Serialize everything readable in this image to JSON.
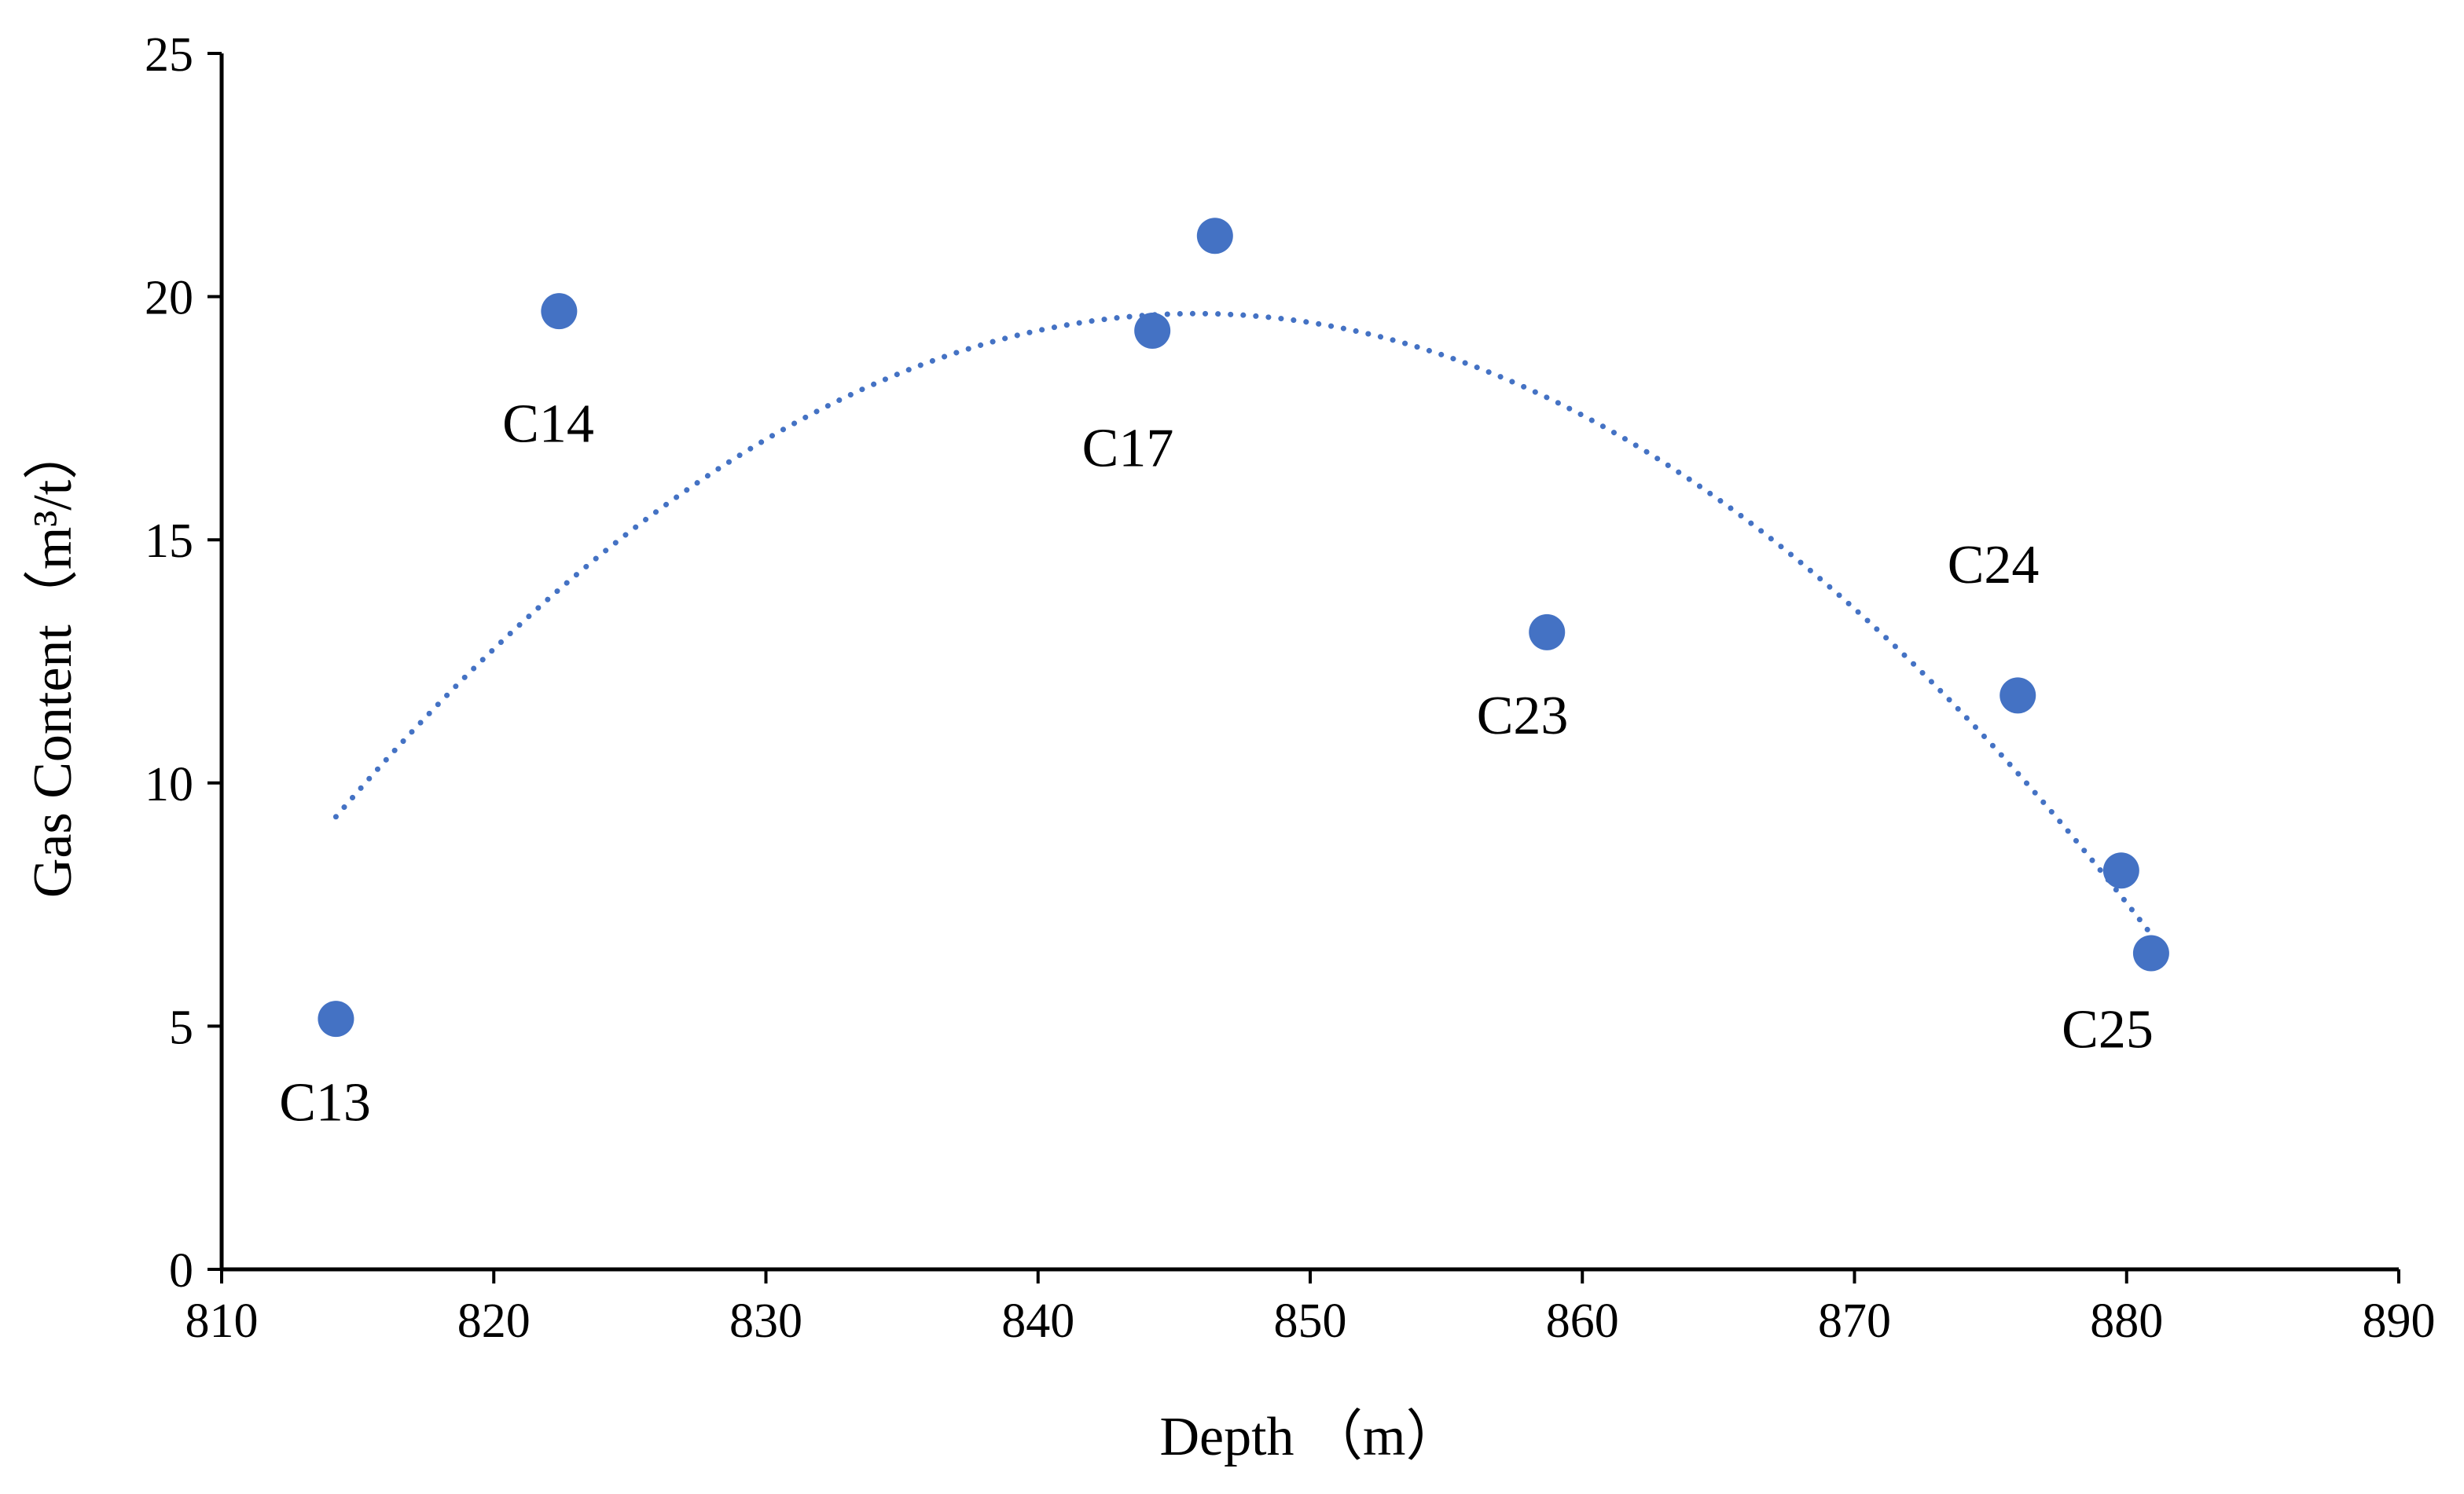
{
  "chart_data": {
    "type": "scatter",
    "xlabel": "Depth （m）",
    "ylabel": "Gas Content（m³/t）",
    "xlim": [
      810,
      890
    ],
    "ylim": [
      0,
      25
    ],
    "xticks": [
      810,
      820,
      830,
      840,
      850,
      860,
      870,
      880,
      890
    ],
    "yticks": [
      0,
      5,
      10,
      15,
      20,
      25
    ],
    "grid": false,
    "colors": {
      "points": "#4472C4",
      "trendline": "#4472C4",
      "axis": "#000000"
    },
    "series": [
      {
        "name": "Gas Content",
        "points": [
          {
            "x": 814.2,
            "y": 5.15
          },
          {
            "x": 822.4,
            "y": 19.7
          },
          {
            "x": 844.2,
            "y": 19.3
          },
          {
            "x": 846.5,
            "y": 21.25
          },
          {
            "x": 858.7,
            "y": 13.1
          },
          {
            "x": 876.0,
            "y": 11.8
          },
          {
            "x": 879.8,
            "y": 8.2
          },
          {
            "x": 880.9,
            "y": 6.5
          }
        ]
      }
    ],
    "point_labels": [
      {
        "text": "C13",
        "x": 813.8,
        "y": 3.45
      },
      {
        "text": "C14",
        "x": 822.0,
        "y": 17.4
      },
      {
        "text": "C17",
        "x": 843.3,
        "y": 16.9
      },
      {
        "text": "C23",
        "x": 857.8,
        "y": 11.4
      },
      {
        "text": "C24",
        "x": 875.1,
        "y": 14.5
      },
      {
        "text": "C25",
        "x": 879.3,
        "y": 4.95
      }
    ],
    "trendline": {
      "type": "polynomial",
      "order": 2,
      "x_range": [
        814.2,
        880.9
      ],
      "vertex": {
        "x": 845.8,
        "y": 19.65
      },
      "coef_a": -0.01036,
      "style": "dotted"
    }
  }
}
